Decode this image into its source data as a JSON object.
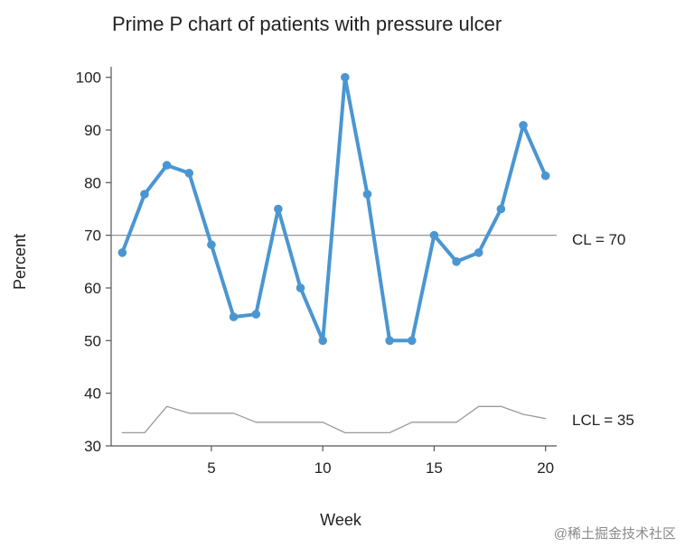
{
  "chart_data": {
    "type": "line",
    "title": "Prime P chart of patients with pressure ulcer",
    "xlabel": "Week",
    "ylabel": "Percent",
    "xlim": [
      0.5,
      20.5
    ],
    "ylim": [
      30,
      102
    ],
    "x_ticks": [
      5,
      10,
      15,
      20
    ],
    "x_tick_labels": [
      "5",
      "10",
      "15",
      "20"
    ],
    "y_ticks": [
      30,
      40,
      50,
      60,
      70,
      80,
      90,
      100
    ],
    "y_tick_labels": [
      "30",
      "40",
      "50",
      "60",
      "70",
      "80",
      "90",
      "100"
    ],
    "x": [
      1,
      2,
      3,
      4,
      5,
      6,
      7,
      8,
      9,
      10,
      11,
      12,
      13,
      14,
      15,
      16,
      17,
      18,
      19,
      20
    ],
    "series": [
      {
        "name": "Percent",
        "color": "#4a96d2",
        "values": [
          66.7,
          77.8,
          83.3,
          81.8,
          68.2,
          54.5,
          55.0,
          75.0,
          60.0,
          50.0,
          100.0,
          77.8,
          50.0,
          50.0,
          70.0,
          65.0,
          66.7,
          75.0,
          90.9,
          81.3
        ]
      },
      {
        "name": "LCL",
        "color": "#9a9a9a",
        "values": [
          32.5,
          32.5,
          37.5,
          36.2,
          36.2,
          36.2,
          34.5,
          34.5,
          34.5,
          34.5,
          32.5,
          32.5,
          32.5,
          34.5,
          34.5,
          34.5,
          37.5,
          37.5,
          36.0,
          35.2
        ]
      }
    ],
    "center_line": {
      "value": 70,
      "label": "CL = 70",
      "color": "#888888"
    },
    "lcl_label": "LCL = 35",
    "grid": false,
    "legend": "none",
    "watermark": "@稀土掘金技术社区"
  }
}
